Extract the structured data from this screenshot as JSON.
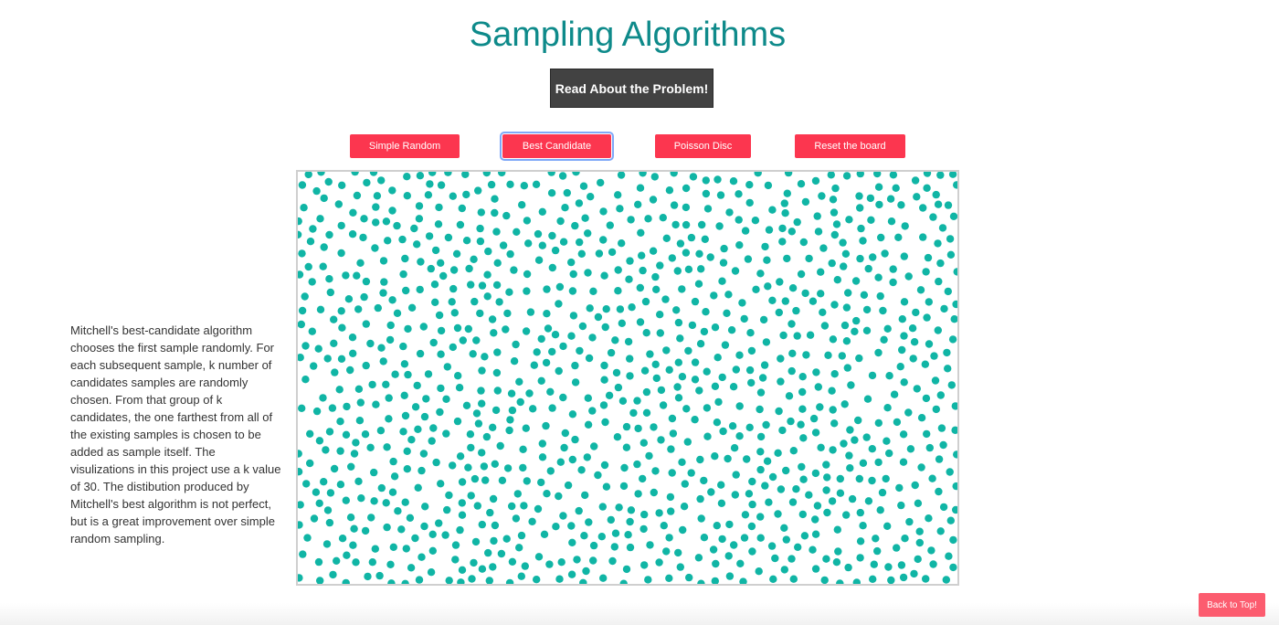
{
  "header": {
    "title": "Sampling Algorithms",
    "read_button_label": "Read About the Problem!"
  },
  "controls": {
    "buttons": [
      {
        "label": "Simple Random",
        "active": false
      },
      {
        "label": "Best Candidate",
        "active": true
      },
      {
        "label": "Poisson Disc",
        "active": false
      },
      {
        "label": "Reset the board",
        "active": false
      }
    ]
  },
  "description": "Mitchell's best-candidate algorithm chooses the first sample randomly. For each subsequent sample, k number of candidates samples are randomly chosen. From that group of k candidates, the one farthest from all of the existing samples is chosen to be added as sample itself. The visulizations in this project use a k value of 30. The distibution produced by Mitchell's best algorithm is not perfect, but is a great improvement over simple random sampling.",
  "board": {
    "dot_color": "#10b5a5",
    "accent_color": "#fc364f"
  },
  "footer": {
    "back_to_top_label": "Back to Top!"
  }
}
